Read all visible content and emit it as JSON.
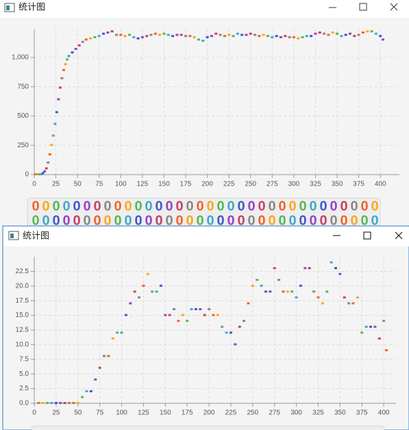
{
  "windows": [
    {
      "title": "统计图"
    },
    {
      "title": "统计图"
    }
  ],
  "chart_data": [
    {
      "type": "scatter",
      "x": [
        2,
        4,
        6,
        8,
        10,
        12,
        14,
        16,
        18,
        20,
        22,
        24,
        26,
        28,
        30,
        32,
        34,
        36,
        38,
        40,
        44,
        48,
        52,
        56,
        60,
        65,
        70,
        75,
        80,
        85,
        90,
        95,
        100,
        105,
        110,
        115,
        120,
        125,
        130,
        135,
        140,
        145,
        150,
        155,
        160,
        165,
        170,
        175,
        180,
        185,
        190,
        195,
        200,
        205,
        210,
        215,
        220,
        225,
        230,
        235,
        240,
        245,
        250,
        255,
        260,
        265,
        270,
        275,
        280,
        285,
        290,
        295,
        300,
        305,
        310,
        315,
        320,
        325,
        330,
        335,
        340,
        345,
        350,
        355,
        360,
        365,
        370,
        375,
        380,
        385,
        390,
        395,
        400,
        403
      ],
      "values": [
        0,
        0,
        0,
        0,
        10,
        25,
        50,
        100,
        170,
        250,
        330,
        430,
        530,
        640,
        740,
        820,
        890,
        940,
        980,
        1010,
        1040,
        1070,
        1100,
        1130,
        1150,
        1160,
        1170,
        1180,
        1200,
        1210,
        1220,
        1190,
        1190,
        1180,
        1190,
        1170,
        1160,
        1170,
        1180,
        1190,
        1200,
        1190,
        1200,
        1190,
        1180,
        1190,
        1190,
        1180,
        1180,
        1170,
        1150,
        1140,
        1170,
        1180,
        1200,
        1190,
        1180,
        1190,
        1180,
        1200,
        1190,
        1190,
        1200,
        1190,
        1180,
        1190,
        1180,
        1170,
        1180,
        1170,
        1180,
        1170,
        1170,
        1160,
        1170,
        1180,
        1180,
        1200,
        1210,
        1200,
        1190,
        1210,
        1200,
        1180,
        1190,
        1200,
        1180,
        1190,
        1210,
        1220,
        1220,
        1200,
        1180,
        1150
      ],
      "xlim": [
        0,
        422
      ],
      "ylim": [
        0,
        1245
      ],
      "xticks": [
        0,
        25,
        50,
        75,
        100,
        125,
        150,
        175,
        200,
        225,
        250,
        275,
        300,
        325,
        350,
        375,
        400
      ],
      "yticks": [
        0,
        250,
        500,
        750,
        {
          "value": 1000,
          "label": "1,000"
        }
      ],
      "grid": true,
      "palette": [
        "#f3622d",
        "#fba71b",
        "#57b757",
        "#41a9c9",
        "#4258c9",
        "#9a42c8",
        "#c84164",
        "#888888"
      ],
      "legend": [
        "0",
        "0",
        "0",
        "0",
        "0",
        "0",
        "0",
        "0",
        "0",
        "0",
        "0",
        "0",
        "0",
        "0",
        "0",
        "0",
        "0",
        "0",
        "0",
        "0",
        "0",
        "0",
        "0",
        "0",
        "0",
        "0",
        "0",
        "0",
        "0",
        "0",
        "0",
        "0",
        "0",
        "0",
        "0",
        "0",
        "0",
        "0",
        "0",
        "0",
        "0",
        "0",
        "0",
        "0",
        "0",
        "0",
        "0",
        "0",
        "0",
        "0",
        "0",
        "0",
        "0",
        "0",
        "0",
        "0",
        "0",
        "0",
        "0",
        "0",
        "0",
        "0",
        "0",
        "0",
        "0",
        "0",
        "0",
        "0"
      ]
    },
    {
      "type": "scatter",
      "x": [
        5,
        10,
        15,
        20,
        25,
        30,
        35,
        40,
        45,
        50,
        55,
        60,
        65,
        70,
        75,
        80,
        85,
        90,
        95,
        100,
        105,
        110,
        115,
        120,
        125,
        130,
        135,
        140,
        145,
        150,
        155,
        160,
        165,
        170,
        175,
        180,
        185,
        190,
        195,
        200,
        205,
        210,
        215,
        220,
        225,
        230,
        235,
        240,
        245,
        250,
        255,
        260,
        265,
        270,
        275,
        280,
        285,
        290,
        295,
        300,
        305,
        310,
        315,
        320,
        325,
        330,
        335,
        340,
        345,
        350,
        355,
        360,
        365,
        370,
        375,
        380,
        385,
        390,
        395,
        400,
        403
      ],
      "values": [
        0,
        0,
        0,
        0,
        0,
        0,
        0,
        0,
        0,
        0,
        1,
        2,
        2,
        4,
        6,
        8,
        8,
        11,
        12,
        12,
        15,
        17,
        19,
        18,
        20,
        22,
        19,
        19,
        20,
        15,
        15,
        16,
        14,
        15,
        14,
        16,
        16,
        16,
        15,
        16,
        15,
        15,
        13,
        12,
        12,
        10,
        13,
        14,
        17,
        20,
        21,
        20,
        19,
        19,
        23,
        21,
        19,
        19,
        19,
        18,
        20,
        23,
        23,
        19,
        18,
        17,
        19,
        24,
        23,
        22,
        18,
        17,
        17,
        18,
        12,
        13,
        13,
        13,
        11,
        14,
        9
      ],
      "xlim": [
        0,
        414
      ],
      "ylim": [
        0,
        25
      ],
      "xticks": [
        0,
        25,
        50,
        75,
        100,
        125,
        150,
        175,
        200,
        225,
        250,
        275,
        300,
        325,
        350,
        375,
        400
      ],
      "yticks": [
        {
          "value": 0,
          "label": "0.0"
        },
        {
          "value": 2.5,
          "label": "2.5"
        },
        {
          "value": 5,
          "label": "5.0"
        },
        {
          "value": 7.5,
          "label": "7.5"
        },
        {
          "value": 10,
          "label": "10.0"
        },
        {
          "value": 12.5,
          "label": "12.5"
        },
        {
          "value": 15,
          "label": "15.0"
        },
        {
          "value": 17.5,
          "label": "17.5"
        },
        {
          "value": 20,
          "label": "20.0"
        },
        {
          "value": 22.5,
          "label": "22.5"
        }
      ],
      "grid": true,
      "palette": [
        "#f3622d",
        "#fba71b",
        "#57b757",
        "#41a9c9",
        "#4258c9",
        "#9a42c8",
        "#c84164",
        "#888888"
      ]
    }
  ]
}
